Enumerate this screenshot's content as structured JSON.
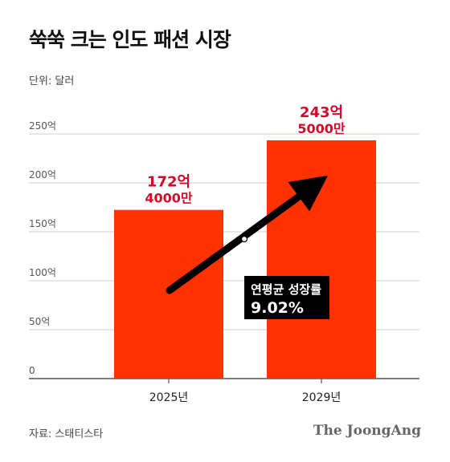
{
  "title": "쑥쑥 크는 인도 패션 시장",
  "unit": "단위: 달러",
  "source": "자료: 스태티스타",
  "brand": "The JoongAng",
  "colors": {
    "bar": "#ff3300",
    "label": "#d10a2a",
    "arrow": "#000000",
    "grid": "#cccccc"
  },
  "chart_data": {
    "type": "bar",
    "categories": [
      "2025년",
      "2029년"
    ],
    "values": [
      172.4,
      243.5
    ],
    "value_labels": [
      {
        "line1": "172억",
        "line2": "4000만"
      },
      {
        "line1": "243억",
        "line2": "5000만"
      }
    ],
    "yticks": [
      0,
      50,
      100,
      150,
      200,
      250
    ],
    "ytick_labels": [
      "0",
      "50억",
      "100억",
      "150억",
      "200억",
      "250억"
    ],
    "ylim": [
      0,
      250
    ],
    "grid": true,
    "annotation": {
      "label": "연평균 성장률",
      "value": "9.02%"
    }
  }
}
